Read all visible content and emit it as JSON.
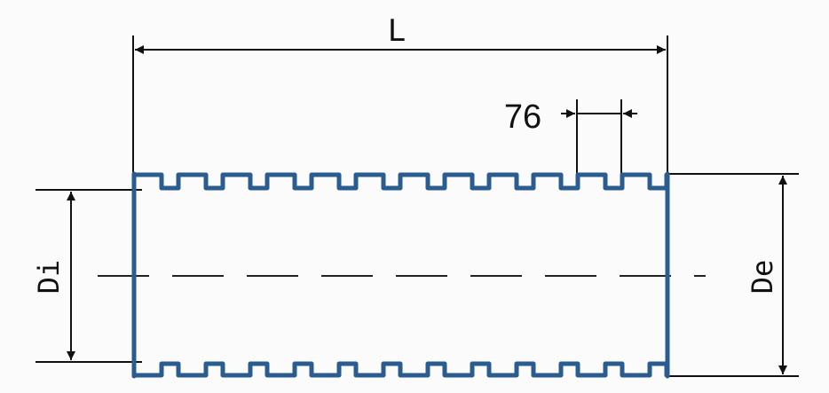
{
  "diagram": {
    "labels": {
      "length": "L",
      "pitch": "76",
      "inner_diameter": "Di",
      "outer_diameter": "De"
    },
    "colors": {
      "pipe": "#2a5c8f",
      "lines": "#111111",
      "background": "#fbfbfb"
    }
  }
}
